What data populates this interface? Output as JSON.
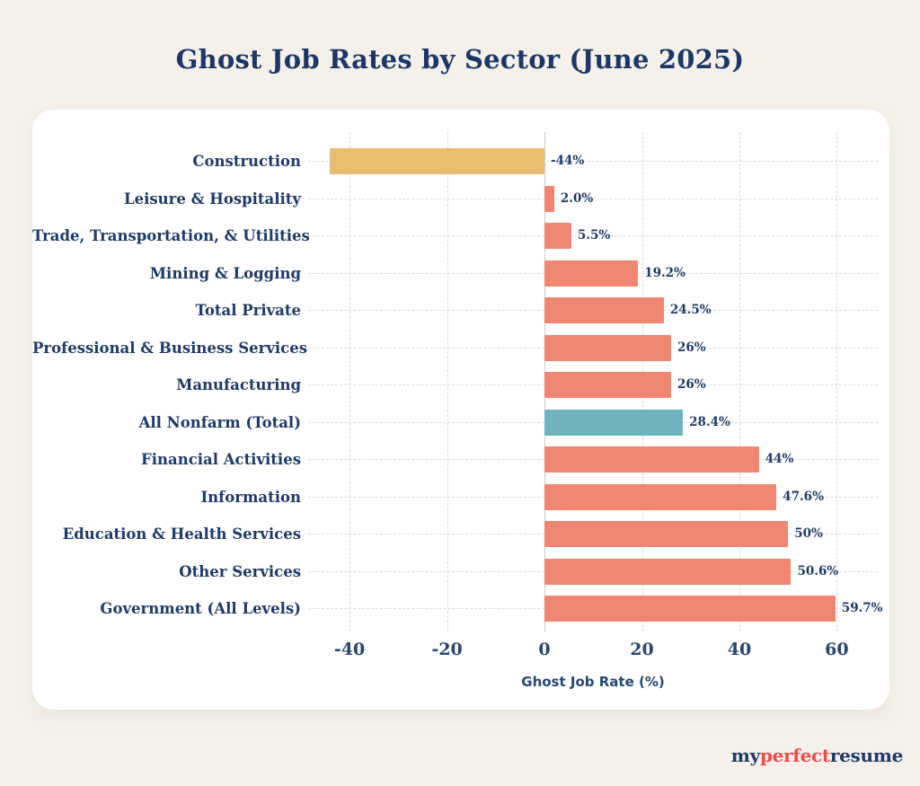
{
  "page": {
    "background_color": "#f5f1ea",
    "panel_color": "#ffffff",
    "title_color": "#1c3767",
    "text_color": "#1e3a67"
  },
  "chart_data": {
    "type": "bar",
    "orientation": "horizontal",
    "title": "Ghost Job Rates by Sector (June 2025)",
    "xlabel": "Ghost Job Rate (%)",
    "xlim": [
      -48.5,
      68.4
    ],
    "x_ticks": [
      -40,
      -20,
      0,
      20,
      40,
      60
    ],
    "grid": "dashed vertical gridlines at ticks, dashed horizontal line per row, solid light zero line",
    "legend": "none",
    "palette": {
      "default": "#ee8672",
      "negative_highlight": "#e9bd70",
      "total_highlight": "#6fb3bf",
      "gridline": "#d9d9d9",
      "zero_line": "#cccccc"
    },
    "series": [
      {
        "label": "Construction",
        "value": -44,
        "display": "-44%",
        "color": "#e9bd70"
      },
      {
        "label": "Leisure & Hospitality",
        "value": 2.0,
        "display": "2.0%",
        "color": "#ee8672"
      },
      {
        "label": "Trade, Transportation, & Utilities",
        "value": 5.5,
        "display": "5.5%",
        "color": "#ee8672"
      },
      {
        "label": "Mining & Logging",
        "value": 19.2,
        "display": "19.2%",
        "color": "#ee8672"
      },
      {
        "label": "Total Private",
        "value": 24.5,
        "display": "24.5%",
        "color": "#ee8672"
      },
      {
        "label": "Professional & Business Services",
        "value": 26,
        "display": "26%",
        "color": "#ee8672"
      },
      {
        "label": "Manufacturing",
        "value": 26,
        "display": "26%",
        "color": "#ee8672"
      },
      {
        "label": "All Nonfarm (Total)",
        "value": 28.4,
        "display": "28.4%",
        "color": "#6fb3bf"
      },
      {
        "label": "Financial Activities",
        "value": 44,
        "display": "44%",
        "color": "#ee8672"
      },
      {
        "label": "Information",
        "value": 47.6,
        "display": "47.6%",
        "color": "#ee8672"
      },
      {
        "label": "Education & Health Services",
        "value": 50,
        "display": "50%",
        "color": "#ee8672"
      },
      {
        "label": "Other Services",
        "value": 50.6,
        "display": "50.6%",
        "color": "#ee8672"
      },
      {
        "label": "Government (All Levels)",
        "value": 59.7,
        "display": "59.7%",
        "color": "#ee8672"
      }
    ]
  },
  "footer": {
    "logo_parts": [
      {
        "text": "my",
        "color": "#1e3a67"
      },
      {
        "text": "perfect",
        "color": "#ef4b4d"
      },
      {
        "text": "resume",
        "color": "#1e3a67"
      }
    ]
  }
}
